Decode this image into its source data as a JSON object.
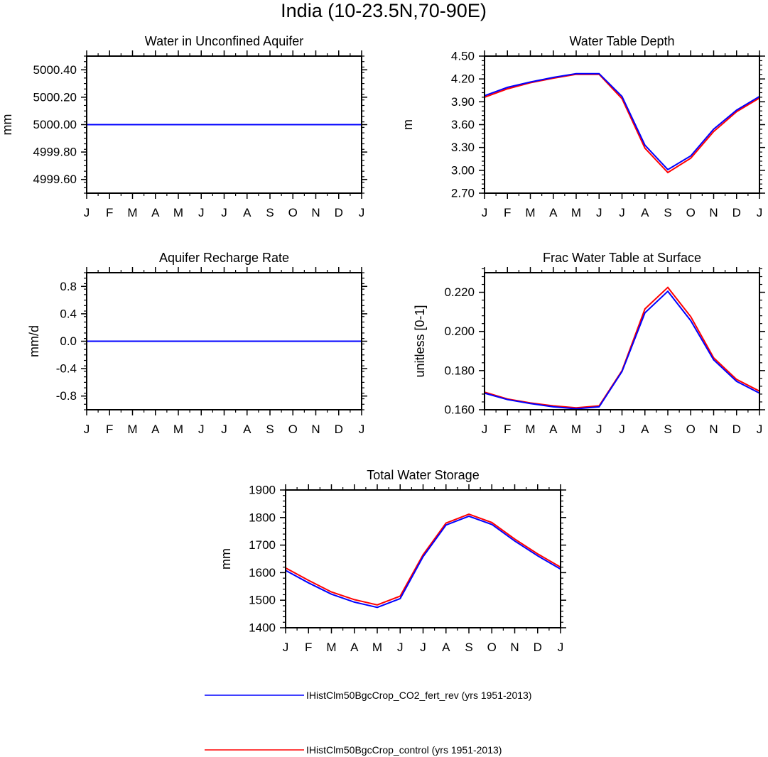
{
  "figure": {
    "title": "India (10-23.5N,70-90E)"
  },
  "months": [
    "J",
    "F",
    "M",
    "A",
    "M",
    "J",
    "J",
    "A",
    "S",
    "O",
    "N",
    "D",
    "J"
  ],
  "legend": [
    {
      "label": "IHistClm50BgcCrop_CO2_fert_rev (yrs 1951-2013)",
      "color": "#0000ff"
    },
    {
      "label": "IHistClm50BgcCrop_control (yrs 1951-2013)",
      "color": "#ff0000"
    }
  ],
  "chart_data": [
    {
      "type": "line",
      "title": "Water in Unconfined Aquifer",
      "ylabel": "mm",
      "xlabel": "",
      "x": [
        "J",
        "F",
        "M",
        "A",
        "M",
        "J",
        "J",
        "A",
        "S",
        "O",
        "N",
        "D",
        "J"
      ],
      "ylim": [
        4999.5,
        5000.5
      ],
      "yticks": [
        "5000.40",
        "5000.20",
        "5000.00",
        "4999.80",
        "4999.60"
      ],
      "ytick_values": [
        5000.4,
        5000.2,
        5000.0,
        4999.8,
        4999.6
      ],
      "grid": false,
      "series": [
        {
          "name": "IHistClm50BgcCrop_control (yrs 1951-2013)",
          "color": "#ff0000",
          "values": [
            5000,
            5000,
            5000,
            5000,
            5000,
            5000,
            5000,
            5000,
            5000,
            5000,
            5000,
            5000,
            5000
          ]
        },
        {
          "name": "IHistClm50BgcCrop_CO2_fert_rev (yrs 1951-2013)",
          "color": "#0000ff",
          "values": [
            5000,
            5000,
            5000,
            5000,
            5000,
            5000,
            5000,
            5000,
            5000,
            5000,
            5000,
            5000,
            5000
          ]
        }
      ]
    },
    {
      "type": "line",
      "title": "Water Table Depth",
      "ylabel": "m",
      "xlabel": "",
      "x": [
        "J",
        "F",
        "M",
        "A",
        "M",
        "J",
        "J",
        "A",
        "S",
        "O",
        "N",
        "D",
        "J"
      ],
      "ylim": [
        2.7,
        4.5
      ],
      "yticks": [
        "4.50",
        "4.20",
        "3.90",
        "3.60",
        "3.30",
        "3.00",
        "2.70"
      ],
      "ytick_values": [
        4.5,
        4.2,
        3.9,
        3.6,
        3.3,
        3.0,
        2.7
      ],
      "grid": false,
      "series": [
        {
          "name": "IHistClm50BgcCrop_control (yrs 1951-2013)",
          "color": "#ff0000",
          "values": [
            3.96,
            4.07,
            4.15,
            4.21,
            4.26,
            4.26,
            3.94,
            3.29,
            2.97,
            3.16,
            3.51,
            3.77,
            3.95
          ]
        },
        {
          "name": "IHistClm50BgcCrop_CO2_fert_rev (yrs 1951-2013)",
          "color": "#0000ff",
          "values": [
            3.98,
            4.09,
            4.16,
            4.22,
            4.27,
            4.27,
            3.97,
            3.33,
            3.01,
            3.19,
            3.54,
            3.79,
            3.97
          ]
        }
      ]
    },
    {
      "type": "line",
      "title": "Aquifer Recharge Rate",
      "ylabel": "mm/d",
      "xlabel": "",
      "x": [
        "J",
        "F",
        "M",
        "A",
        "M",
        "J",
        "J",
        "A",
        "S",
        "O",
        "N",
        "D",
        "J"
      ],
      "ylim": [
        -1.0,
        1.0
      ],
      "yticks": [
        "0.8",
        "0.4",
        "0.0",
        "-0.4",
        "-0.8"
      ],
      "ytick_values": [
        0.8,
        0.4,
        0.0,
        -0.4,
        -0.8
      ],
      "grid": false,
      "series": [
        {
          "name": "IHistClm50BgcCrop_control (yrs 1951-2013)",
          "color": "#ff0000",
          "values": [
            0,
            0,
            0,
            0,
            0,
            0,
            0,
            0,
            0,
            0,
            0,
            0,
            0
          ]
        },
        {
          "name": "IHistClm50BgcCrop_CO2_fert_rev (yrs 1951-2013)",
          "color": "#0000ff",
          "values": [
            0,
            0,
            0,
            0,
            0,
            0,
            0,
            0,
            0,
            0,
            0,
            0,
            0
          ]
        }
      ]
    },
    {
      "type": "line",
      "title": "Frac Water Table at Surface",
      "ylabel": "unitless [0-1]",
      "xlabel": "",
      "x": [
        "J",
        "F",
        "M",
        "A",
        "M",
        "J",
        "J",
        "A",
        "S",
        "O",
        "N",
        "D",
        "J"
      ],
      "ylim": [
        0.16,
        0.23
      ],
      "yticks": [
        "0.220",
        "0.200",
        "0.180",
        "0.160"
      ],
      "ytick_values": [
        0.22,
        0.2,
        0.18,
        0.16
      ],
      "grid": false,
      "series": [
        {
          "name": "IHistClm50BgcCrop_control (yrs 1951-2013)",
          "color": "#ff0000",
          "values": [
            0.169,
            0.1655,
            0.1635,
            0.162,
            0.161,
            0.162,
            0.18,
            0.2115,
            0.2225,
            0.2075,
            0.1865,
            0.1755,
            0.1695
          ]
        },
        {
          "name": "IHistClm50BgcCrop_CO2_fert_rev (yrs 1951-2013)",
          "color": "#0000ff",
          "values": [
            0.1685,
            0.1652,
            0.1632,
            0.1615,
            0.1605,
            0.1615,
            0.1795,
            0.2095,
            0.2205,
            0.2055,
            0.1855,
            0.1745,
            0.1685
          ]
        }
      ]
    },
    {
      "type": "line",
      "title": "Total Water Storage",
      "ylabel": "mm",
      "xlabel": "",
      "x": [
        "J",
        "F",
        "M",
        "A",
        "M",
        "J",
        "J",
        "A",
        "S",
        "O",
        "N",
        "D",
        "J"
      ],
      "ylim": [
        1400,
        1900
      ],
      "yticks": [
        "1900",
        "1800",
        "1700",
        "1600",
        "1500",
        "1400"
      ],
      "ytick_values": [
        1900,
        1800,
        1700,
        1600,
        1500,
        1400
      ],
      "grid": false,
      "series": [
        {
          "name": "IHistClm50BgcCrop_control (yrs 1951-2013)",
          "color": "#ff0000",
          "values": [
            1617,
            1572,
            1530,
            1502,
            1483,
            1515,
            1665,
            1780,
            1812,
            1782,
            1722,
            1668,
            1620
          ]
        },
        {
          "name": "IHistClm50BgcCrop_CO2_fert_rev (yrs 1951-2013)",
          "color": "#0000ff",
          "values": [
            1608,
            1563,
            1522,
            1493,
            1474,
            1506,
            1658,
            1773,
            1805,
            1775,
            1715,
            1661,
            1613
          ]
        }
      ]
    }
  ]
}
